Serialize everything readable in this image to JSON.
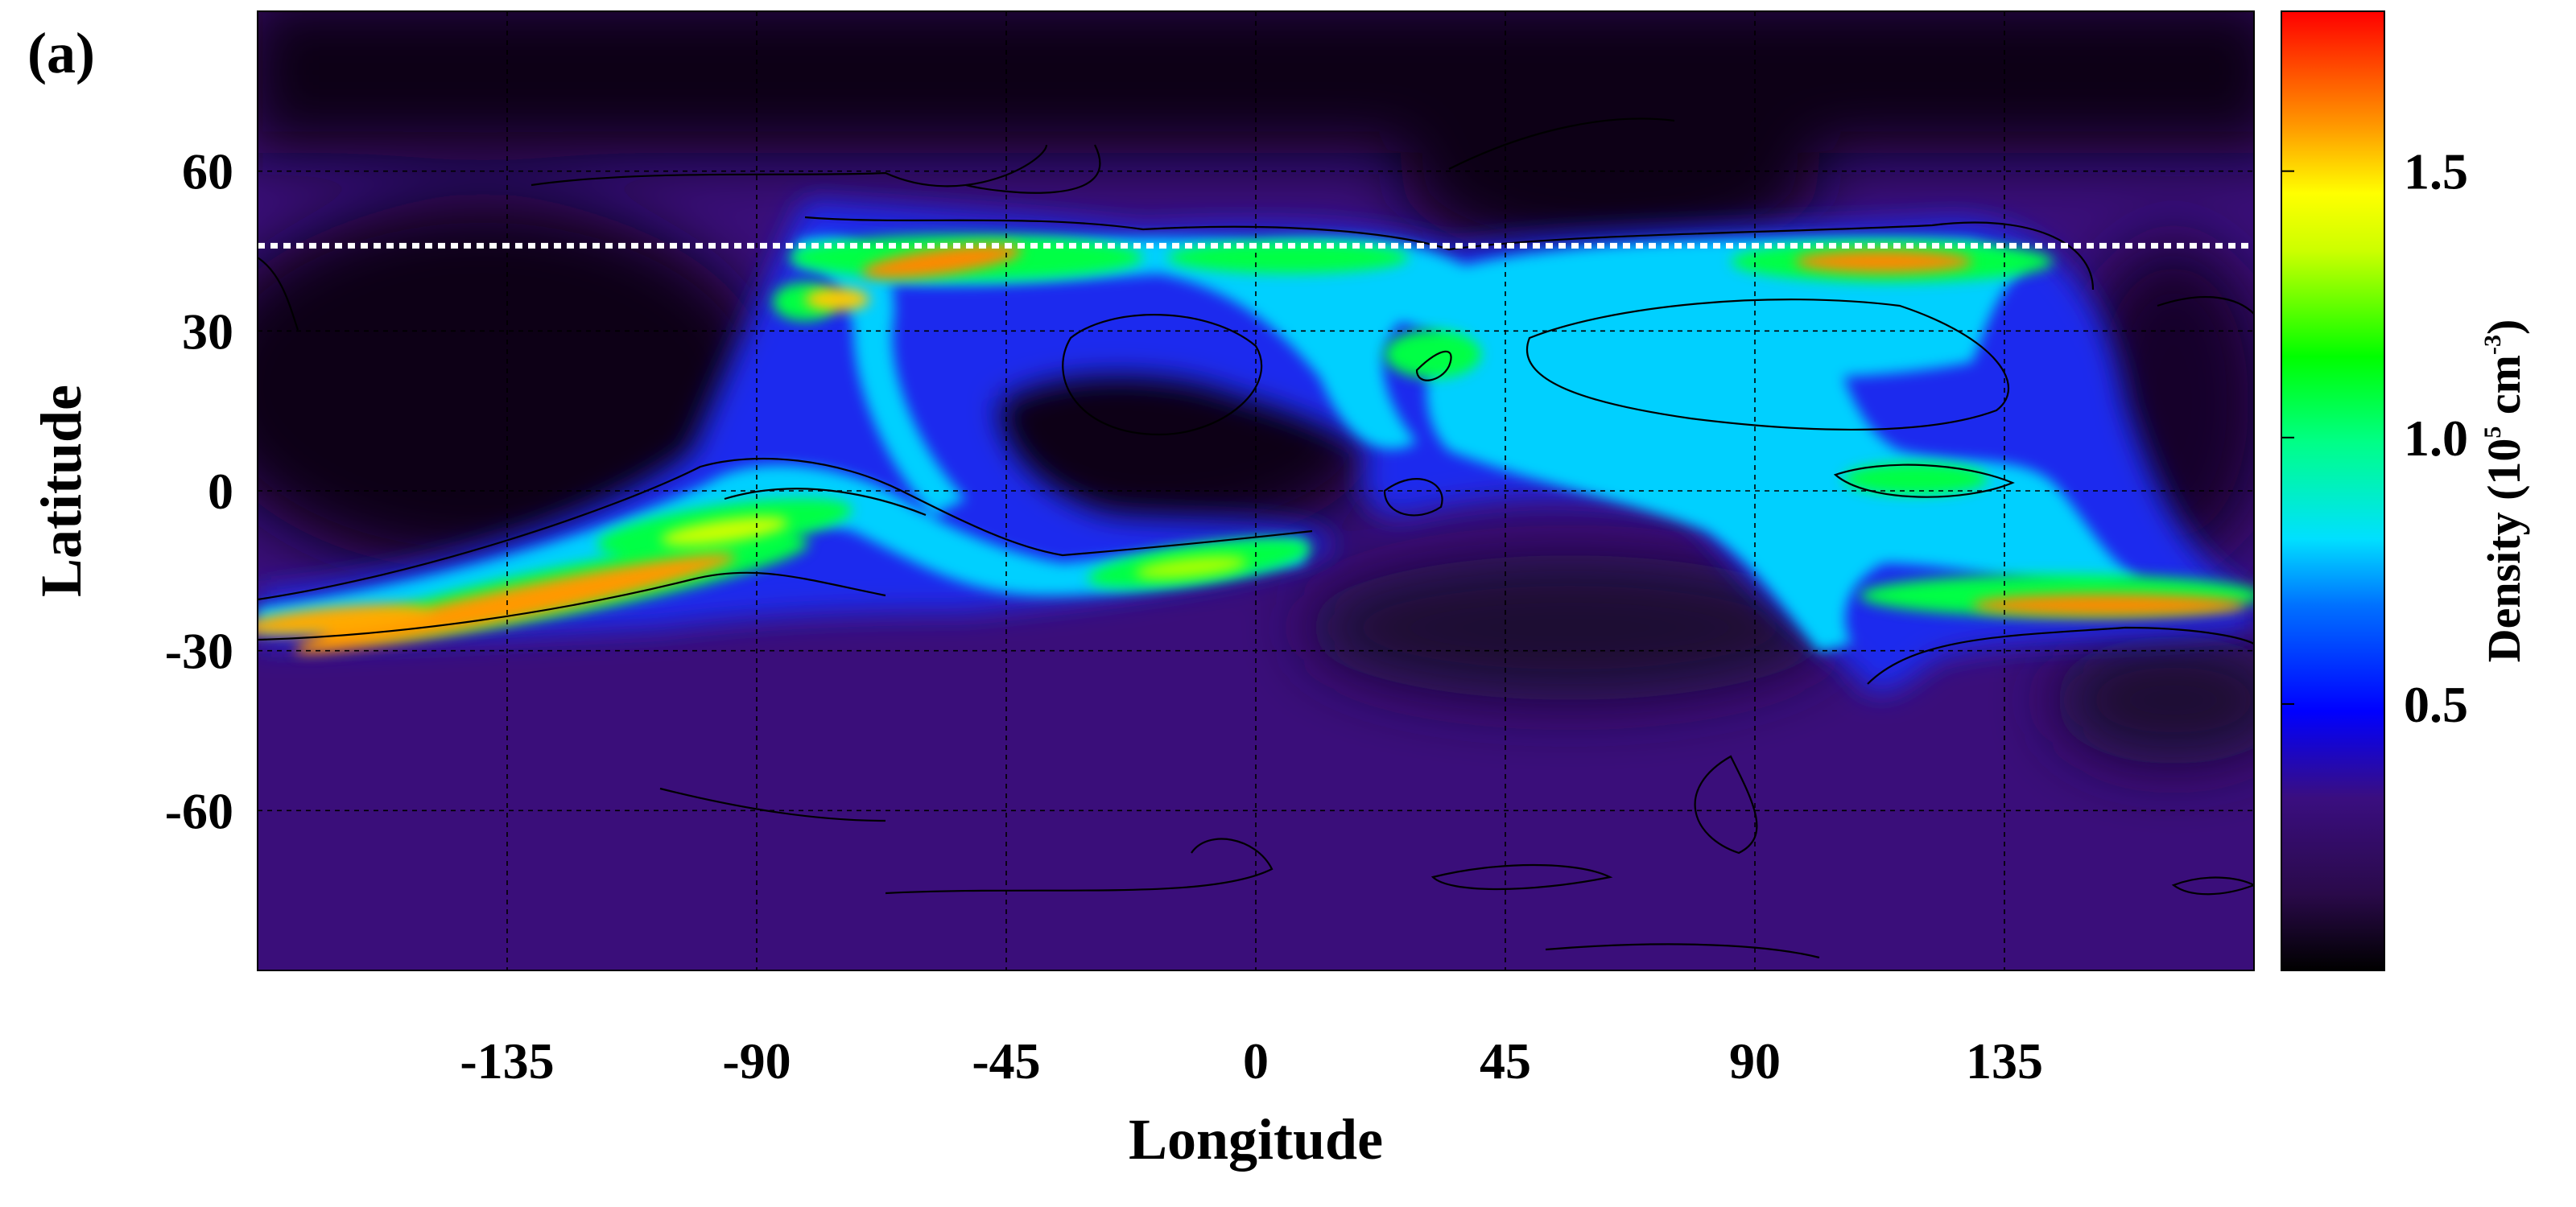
{
  "chart_data": {
    "type": "heatmap",
    "panel_label": "(a)",
    "xlabel": "Longitude",
    "ylabel": "Latitude",
    "xlim": [
      -180,
      180
    ],
    "ylim": [
      -90,
      90
    ],
    "x_ticks": [
      -135,
      -90,
      -45,
      0,
      45,
      90,
      135
    ],
    "y_ticks": [
      60,
      30,
      0,
      -30,
      -60
    ],
    "grid": true,
    "colorbar": {
      "label": "Density (10⁵ cm⁻³)",
      "label_prefix": "Density (10",
      "label_exp1": "5",
      "label_mid": " cm",
      "label_exp2": "-3",
      "label_suffix": ")",
      "ticks": [
        0.5,
        1.0,
        1.5
      ],
      "range": [
        0,
        1.8
      ],
      "colors": [
        "#000000",
        "#2a0a4a",
        "#3a0e80",
        "#2a2ad0",
        "#0000ff",
        "#00aaff",
        "#00ffff",
        "#00ff88",
        "#00ff00",
        "#aaff00",
        "#ffff00",
        "#ffaa00",
        "#ff5500",
        "#ff0000"
      ]
    },
    "reference_line": {
      "latitude": 46,
      "style": "dotted",
      "color": "#ffffff"
    },
    "features": [
      {
        "lon": -150,
        "lat": -20,
        "value": 1.6
      },
      {
        "lon": -110,
        "lat": -12,
        "value": 1.6
      },
      {
        "lon": -88,
        "lat": -8,
        "value": 1.3
      },
      {
        "lon": -70,
        "lat": -3,
        "value": 1.2
      },
      {
        "lon": -18,
        "lat": -14,
        "value": 1.2
      },
      {
        "lon": -55,
        "lat": 42,
        "value": 1.6
      },
      {
        "lon": -78,
        "lat": 36,
        "value": 1.5
      },
      {
        "lon": 0,
        "lat": 43,
        "value": 1.0
      },
      {
        "lon": 115,
        "lat": 43,
        "value": 1.6
      },
      {
        "lon": 25,
        "lat": 25,
        "value": 0.9
      },
      {
        "lon": 70,
        "lat": 15,
        "value": 0.8
      },
      {
        "lon": 115,
        "lat": 2,
        "value": 1.1
      },
      {
        "lon": 140,
        "lat": -21,
        "value": 1.6
      },
      {
        "lon": -80,
        "lat": 20,
        "value": 0.75
      }
    ]
  },
  "colors": {
    "background_field": "#3a0e7a",
    "dark_region": "#0c0414",
    "reference_line": "#ffffff"
  }
}
